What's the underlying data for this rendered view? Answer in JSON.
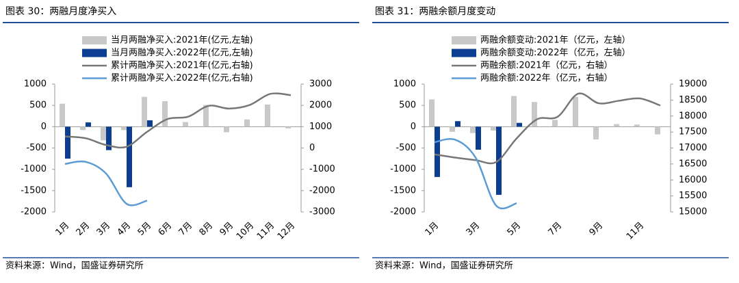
{
  "chart_data": [
    {
      "type": "combo",
      "title": "图表 30：两融月度净买入",
      "source": "资料来源：Wind，国盛证券研究所",
      "categories": [
        "1月",
        "2月",
        "3月",
        "4月",
        "5月",
        "6月",
        "7月",
        "8月",
        "9月",
        "10月",
        "11月",
        "12月"
      ],
      "ylim": [
        -2000,
        1000
      ],
      "yticks": [
        -2000,
        -1500,
        -1000,
        -500,
        0,
        500,
        1000
      ],
      "y2lim": [
        -3000,
        3000
      ],
      "y2ticks": [
        -3000,
        -2000,
        -1000,
        0,
        1000,
        2000,
        3000
      ],
      "series": [
        {
          "name": "当月两融净买入:2021年(亿元,左轴)",
          "type": "bar",
          "color": "#c8c8c8",
          "values": [
            540,
            -80,
            -320,
            -80,
            700,
            600,
            110,
            510,
            -130,
            170,
            520,
            -40
          ]
        },
        {
          "name": "当月两融净买入:2022年(亿元,左轴)",
          "type": "bar",
          "color": "#0b3d91",
          "values": [
            -750,
            100,
            -550,
            -1420,
            150,
            null,
            null,
            null,
            null,
            null,
            null,
            null
          ]
        },
        {
          "name": "累计两融净买入:2021年(亿元,右轴)",
          "type": "line",
          "axis": "y2",
          "color": "#777777",
          "values": [
            540,
            460,
            140,
            60,
            760,
            1360,
            1470,
            1980,
            1850,
            2020,
            2540,
            2480
          ]
        },
        {
          "name": "累计两融净买入:2022年(亿元,右轴)",
          "type": "line",
          "axis": "y2",
          "color": "#5b9bd5",
          "values": [
            -750,
            -650,
            -1200,
            -2620,
            -2470,
            null,
            null,
            null,
            null,
            null,
            null,
            null
          ]
        }
      ]
    },
    {
      "type": "combo",
      "title": "图表 31：两融余额月度变动",
      "source": "资料来源：Wind，国盛证券研究所",
      "categories": [
        "1月",
        null,
        "3月",
        null,
        "5月",
        null,
        "7月",
        null,
        "9月",
        null,
        "11月",
        null
      ],
      "ylim": [
        -2000,
        1000
      ],
      "yticks": [
        -2000,
        -1500,
        -1000,
        -500,
        0,
        500,
        1000
      ],
      "y2lim": [
        15000,
        19000
      ],
      "y2ticks": [
        15000,
        15500,
        16000,
        16500,
        17000,
        17500,
        18000,
        18500,
        19000
      ],
      "series": [
        {
          "name": "两融余额变动:2021年（亿元，左轴）",
          "type": "bar",
          "color": "#c8c8c8",
          "values": [
            640,
            -120,
            -150,
            -90,
            720,
            580,
            160,
            700,
            -300,
            60,
            50,
            -180
          ]
        },
        {
          "name": "两融余额变动:2022年（亿元，左轴）",
          "type": "bar",
          "color": "#0b3d91",
          "values": [
            -1180,
            130,
            -540,
            -1600,
            90,
            null,
            null,
            null,
            null,
            null,
            null,
            null
          ]
        },
        {
          "name": "两融余额:2021年（亿元，右轴）",
          "type": "line",
          "axis": "y2",
          "color": "#777777",
          "values": [
            16800,
            16700,
            16620,
            16560,
            17300,
            17900,
            17980,
            18700,
            18400,
            18480,
            18550,
            18330
          ]
        },
        {
          "name": "两融余额:2022年（亿元，右轴）",
          "type": "line",
          "axis": "y2",
          "color": "#5b9bd5",
          "values": [
            17180,
            17260,
            16700,
            15200,
            15270,
            null,
            null,
            null,
            null,
            null,
            null,
            null
          ]
        }
      ]
    }
  ]
}
